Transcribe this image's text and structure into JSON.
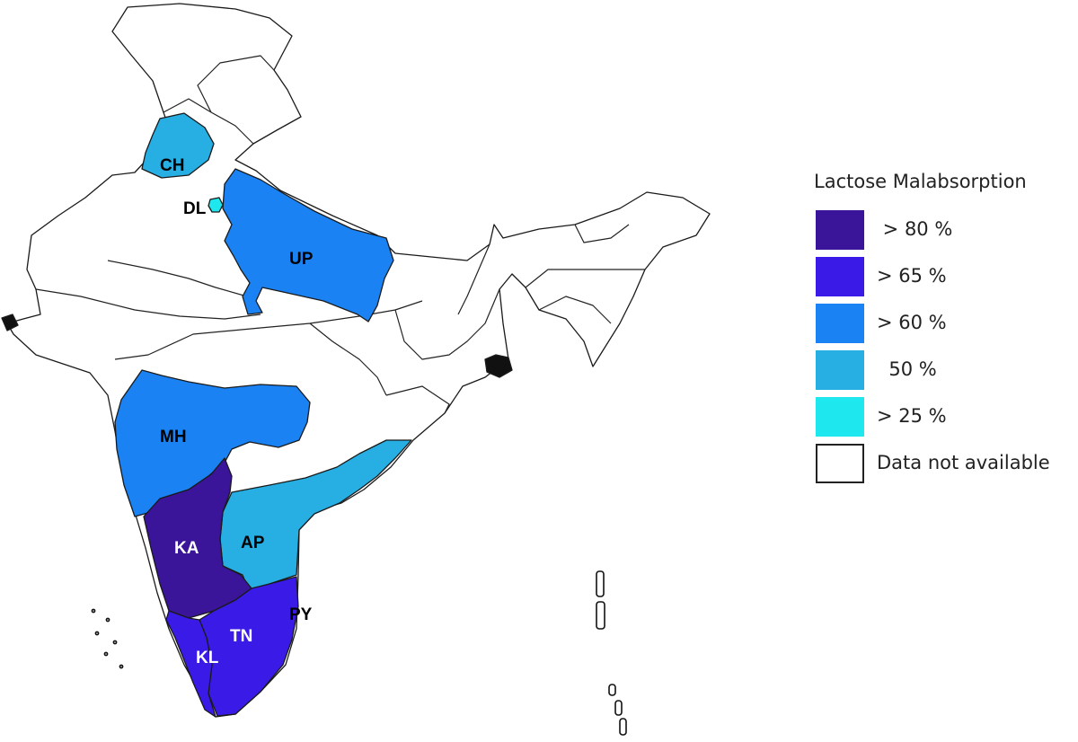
{
  "map": {
    "states": [
      {
        "code": "CH",
        "category": 3,
        "label_color": "#000000"
      },
      {
        "code": "DL",
        "category": 4,
        "label_color": "#000000"
      },
      {
        "code": "UP",
        "category": 2,
        "label_color": "#000000"
      },
      {
        "code": "MH",
        "category": 2,
        "label_color": "#000000"
      },
      {
        "code": "AP",
        "category": 3,
        "label_color": "#000000"
      },
      {
        "code": "KA",
        "category": 0,
        "label_color": "#ffffff"
      },
      {
        "code": "TN",
        "category": 1,
        "label_color": "#ffffff"
      },
      {
        "code": "KL",
        "category": 1,
        "label_color": "#ffffff"
      },
      {
        "code": "PY",
        "category": 1,
        "label_color": "#000000"
      }
    ]
  },
  "legend": {
    "title": "Lactose Malabsorption",
    "items": [
      {
        "label": " > 80 %",
        "color": "#3a1499"
      },
      {
        "label": "> 65 %",
        "color": "#3a1ae6"
      },
      {
        "label": "> 60 %",
        "color": "#1a82f2"
      },
      {
        "label": "  50 %",
        "color": "#27aee3"
      },
      {
        "label": "> 25 %",
        "color": "#1fe7ee"
      },
      {
        "label": "Data not available",
        "color": "#ffffff"
      }
    ]
  }
}
